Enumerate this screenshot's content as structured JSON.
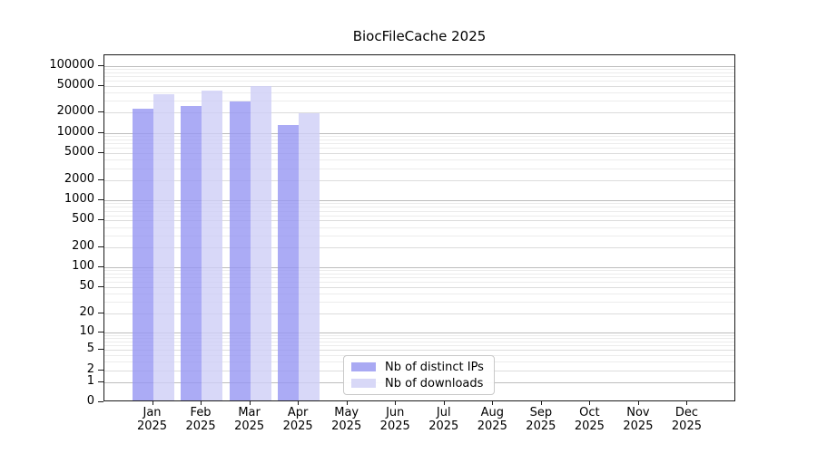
{
  "chart_data": {
    "type": "bar",
    "title": "BiocFileCache 2025",
    "categories": [
      "Jan",
      "Feb",
      "Mar",
      "Apr",
      "May",
      "Jun",
      "Jul",
      "Aug",
      "Sep",
      "Oct",
      "Nov",
      "Dec"
    ],
    "year": "2025",
    "series": [
      {
        "name": "Nb of distinct IPs",
        "color": "#9696f2",
        "legend_color": "#a9a9f3",
        "values": [
          21500,
          24000,
          27700,
          12400,
          null,
          null,
          null,
          null,
          null,
          null,
          null,
          null
        ]
      },
      {
        "name": "Nb of downloads",
        "color": "#cecef6",
        "legend_color": "#d8d8f7",
        "values": [
          35300,
          39900,
          46500,
          18400,
          null,
          null,
          null,
          null,
          null,
          null,
          null,
          null
        ]
      }
    ],
    "yscale": "log1p",
    "ymax": 143000,
    "yticks": [
      0,
      1,
      2,
      5,
      10,
      20,
      50,
      100,
      200,
      500,
      1000,
      2000,
      5000,
      10000,
      20000,
      50000,
      100000
    ],
    "minor_multipliers": [
      3,
      4,
      6,
      7,
      8,
      9
    ],
    "grid": {
      "pow10_color": "#bdbdbd",
      "step_color": "#dcdcdc",
      "minor_color": "#ececec"
    },
    "legend": {
      "position": "bottom-center",
      "entries": [
        "Nb of distinct IPs",
        "Nb of downloads"
      ]
    },
    "axis": {
      "spine_color": "#1a1a1a",
      "grid_on": true
    }
  }
}
